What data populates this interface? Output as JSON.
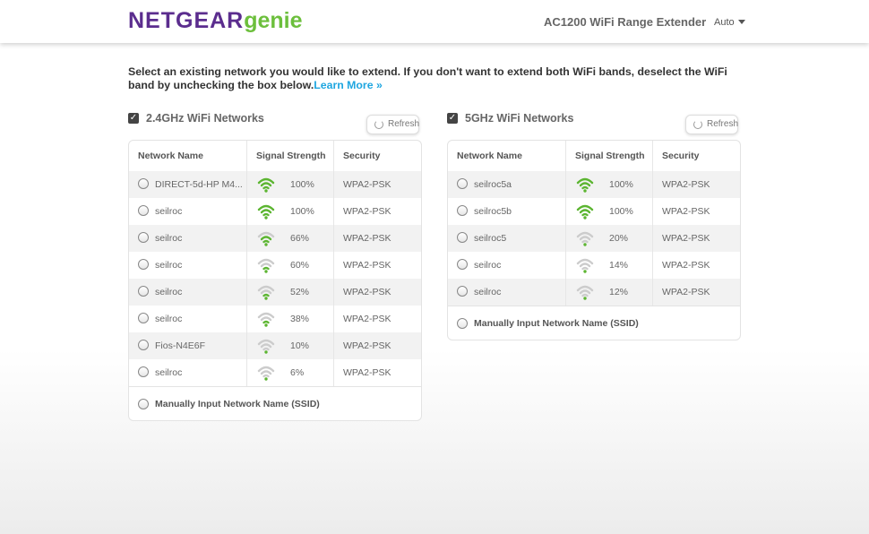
{
  "header": {
    "logo_brand": "NETGEAR",
    "logo_product": "genie",
    "product_title": "AC1200 WiFi Range Extender",
    "language": "Auto"
  },
  "intro": {
    "text": "Select an existing network you would like to extend. If you don't want to extend both WiFi bands, deselect the WiFi band by unchecking the box below.",
    "link": "Learn More »"
  },
  "colors": {
    "signal_on": "#5cb531",
    "signal_off": "#cccccc",
    "brand_purple": "#5b2d8e",
    "brand_green": "#6cbf3c",
    "link": "#1fa6e0"
  },
  "columns": [
    "Network Name",
    "Signal Strength",
    "Security"
  ],
  "bands": [
    {
      "title": "2.4GHz WiFi Networks",
      "checked": true,
      "refresh": "Refresh",
      "manual": "Manually Input Network Name (SSID)",
      "networks": [
        {
          "name": "DIRECT-5d-HP M4...",
          "signal": "100%",
          "bars": 3,
          "security": "WPA2-PSK"
        },
        {
          "name": "seilroc",
          "signal": "100%",
          "bars": 3,
          "security": "WPA2-PSK"
        },
        {
          "name": "seilroc",
          "signal": "66%",
          "bars": 2,
          "security": "WPA2-PSK"
        },
        {
          "name": "seilroc",
          "signal": "60%",
          "bars": 1,
          "security": "WPA2-PSK"
        },
        {
          "name": "seilroc",
          "signal": "52%",
          "bars": 1,
          "security": "WPA2-PSK"
        },
        {
          "name": "seilroc",
          "signal": "38%",
          "bars": 1,
          "security": "WPA2-PSK"
        },
        {
          "name": "Fios-N4E6F",
          "signal": "10%",
          "bars": 0,
          "security": "WPA2-PSK"
        },
        {
          "name": "seilroc",
          "signal": "6%",
          "bars": 0,
          "security": "WPA2-PSK"
        }
      ]
    },
    {
      "title": "5GHz WiFi Networks",
      "checked": true,
      "refresh": "Refresh",
      "manual": "Manually Input Network Name (SSID)",
      "networks": [
        {
          "name": "seilroc5a",
          "signal": "100%",
          "bars": 3,
          "security": "WPA2-PSK"
        },
        {
          "name": "seilroc5b",
          "signal": "100%",
          "bars": 3,
          "security": "WPA2-PSK"
        },
        {
          "name": "seilroc5",
          "signal": "20%",
          "bars": 0,
          "security": "WPA2-PSK"
        },
        {
          "name": "seilroc",
          "signal": "14%",
          "bars": 0,
          "security": "WPA2-PSK"
        },
        {
          "name": "seilroc",
          "signal": "12%",
          "bars": 0,
          "security": "WPA2-PSK"
        }
      ]
    }
  ]
}
